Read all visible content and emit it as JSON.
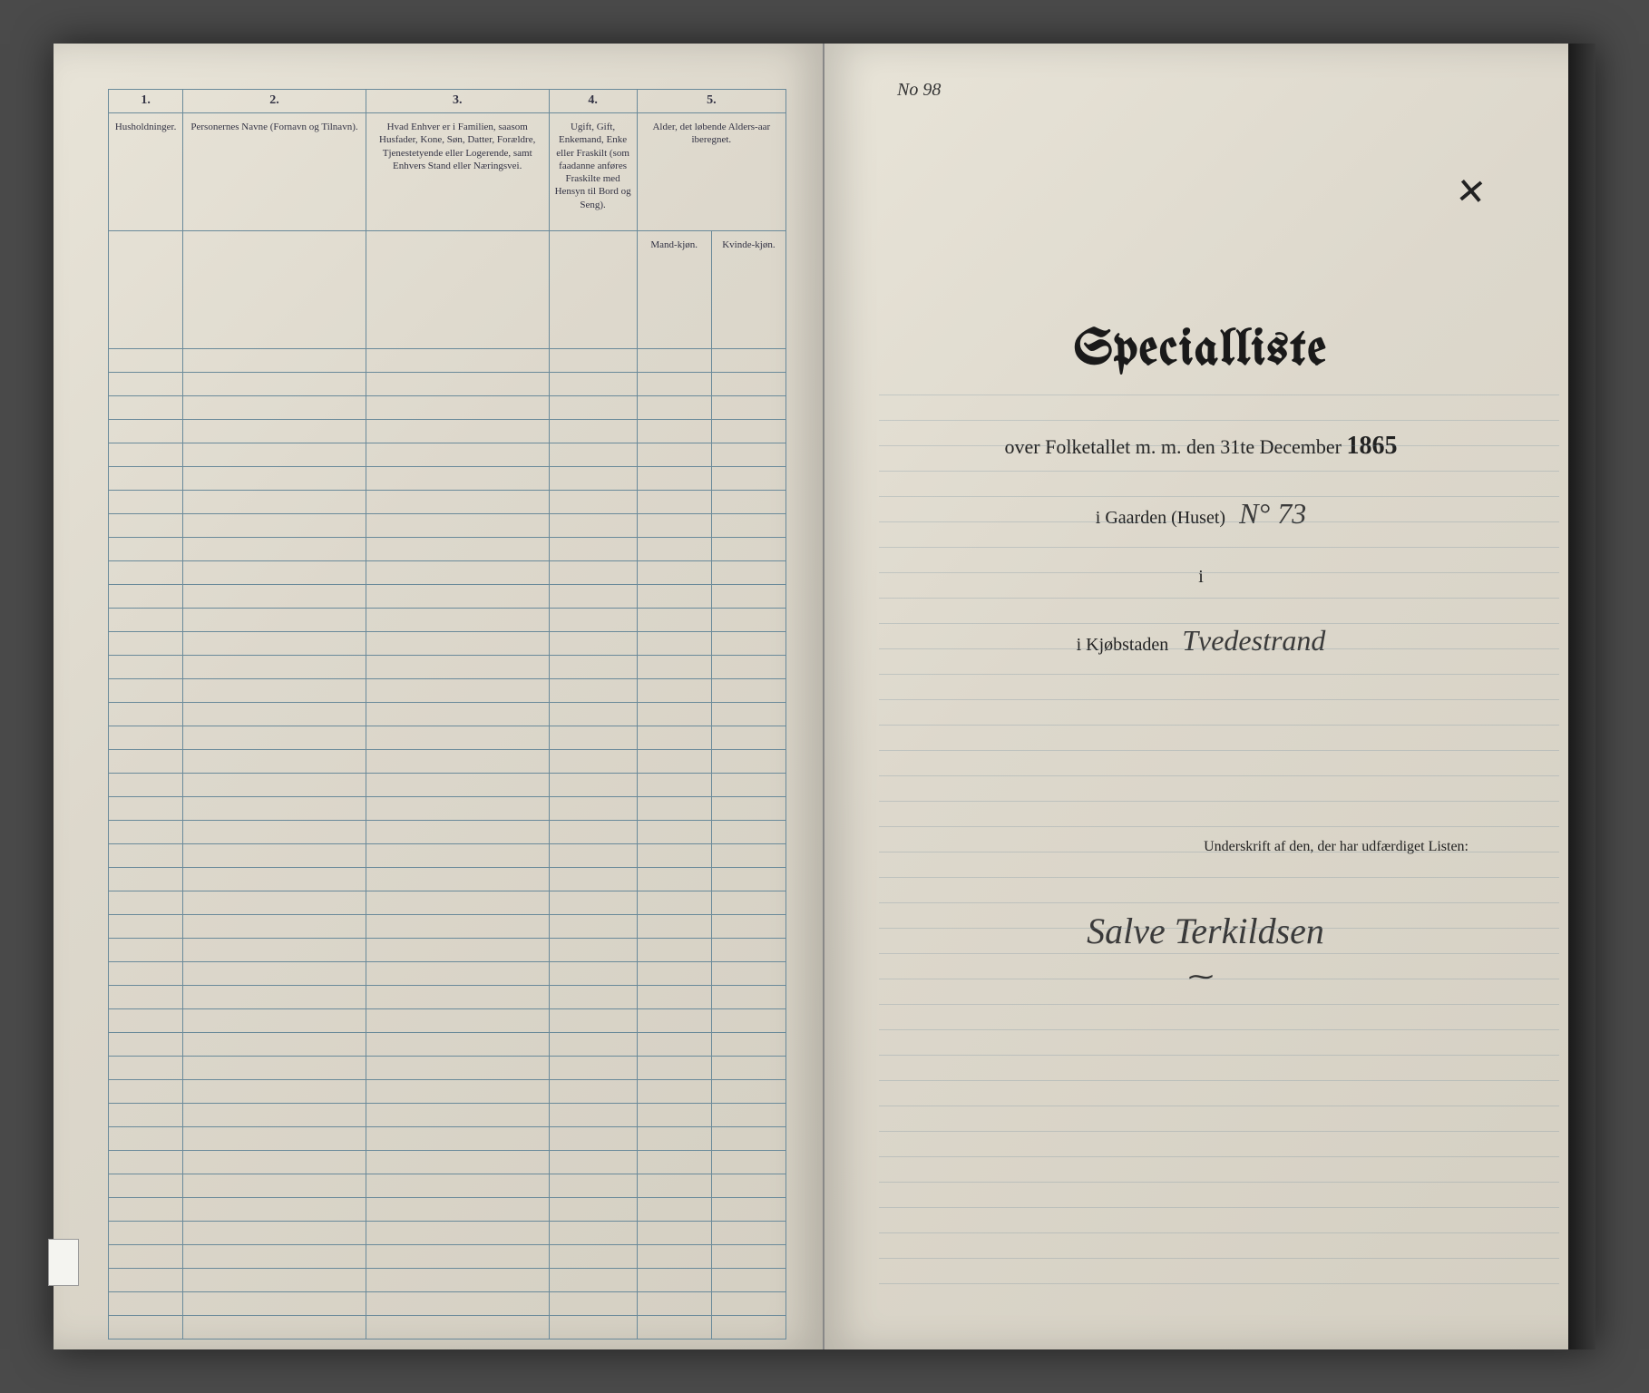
{
  "left_page": {
    "columns": {
      "numbers": [
        "1.",
        "2.",
        "3.",
        "4.",
        "5."
      ],
      "headers": {
        "col1": "Husholdninger.",
        "col2": "Personernes Navne (Fornavn og Tilnavn).",
        "col3": "Hvad Enhver er i Familien, saasom Husfader, Kone, Søn, Datter, Forældre, Tjenestetyende eller Logerende, samt Enhvers Stand eller Næringsvei.",
        "col4": "Ugift, Gift, Enkemand, Enke eller Fraskilt (som faadanne anføres Fraskilte med Hensyn til Bord og Seng).",
        "col5": "Alder, det løbende Alders-aar iberegnet.",
        "col5a": "Mand-kjøn.",
        "col5b": "Kvinde-kjøn."
      }
    },
    "row_count": 42
  },
  "right_page": {
    "page_ref": "No 98",
    "cross": "✕",
    "title": "Specialliste",
    "subtitle_prefix": "over Folketallet m. m. den 31te December",
    "year": "1865",
    "gaarden_label": "i Gaarden (Huset)",
    "gaarden_value": "N° 73",
    "i_line": "i",
    "kjobstaden_label": "i Kjøbstaden",
    "kjobstaden_value": "Tvedestrand",
    "underskrift_label": "Underskrift af den, der har udfærdiget Listen:",
    "signature": "Salve Terkildsen",
    "flourish": "⁓"
  },
  "colors": {
    "paper": "#e0dbcf",
    "rule": "#6a8a9a",
    "ink": "#1a1a1a",
    "background": "#4a4a4a"
  }
}
